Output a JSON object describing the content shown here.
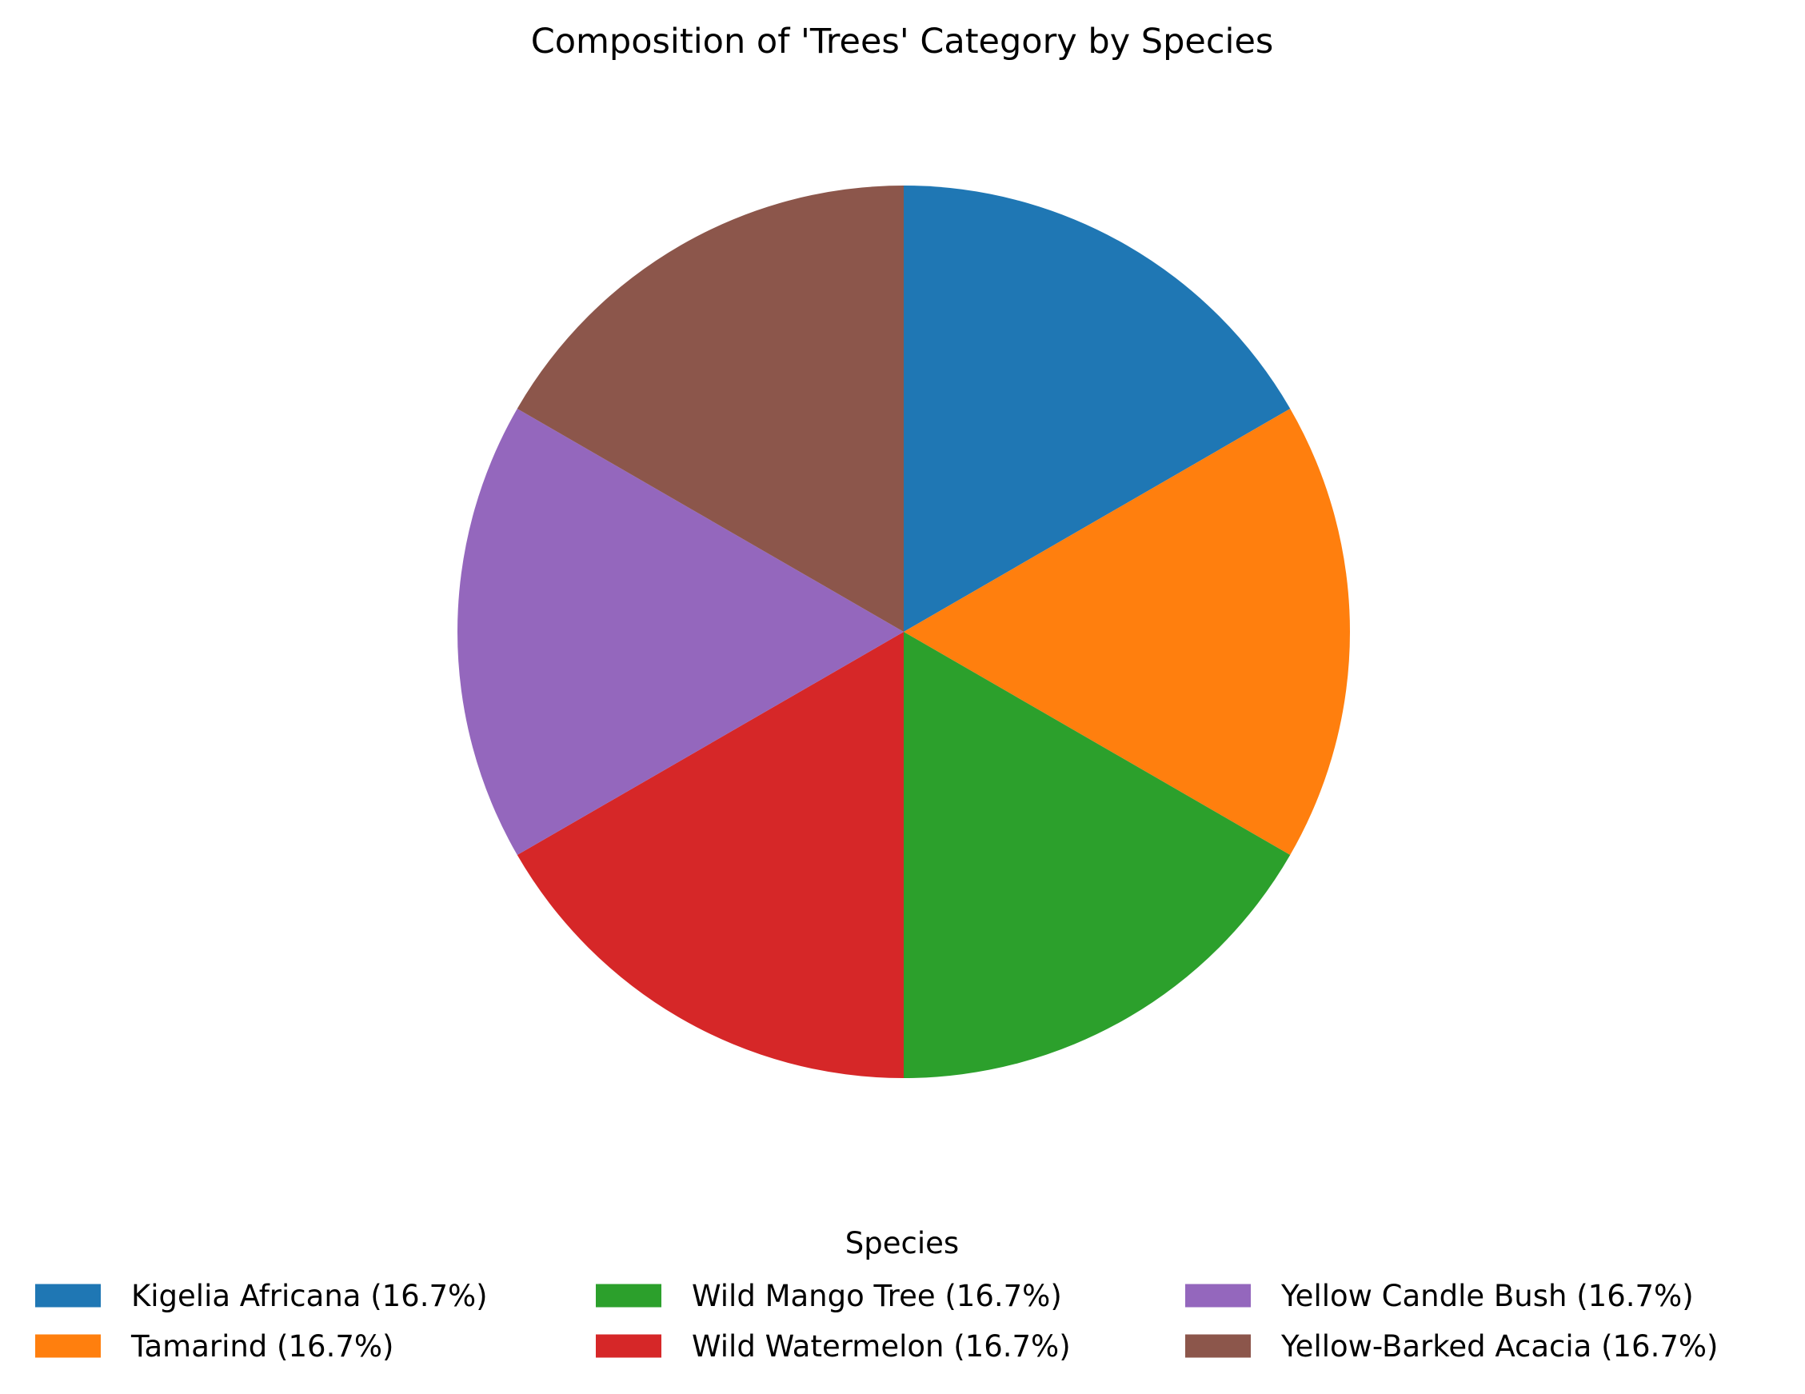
{
  "chart_data": {
    "type": "pie",
    "title": "Composition of 'Trees' Category by Species",
    "legend_title": "Species",
    "legend_placement": "bottom-center",
    "legend_columns": 3,
    "start_angle_deg": 90,
    "direction": "clockwise",
    "slices": [
      {
        "label": "Kigelia Africana",
        "value": 16.7,
        "legend_text": "Kigelia Africana (16.7%)",
        "color": "#1f77b4"
      },
      {
        "label": "Tamarind",
        "value": 16.7,
        "legend_text": "Tamarind (16.7%)",
        "color": "#ff7f0e"
      },
      {
        "label": "Wild Mango Tree",
        "value": 16.7,
        "legend_text": "Wild Mango Tree (16.7%)",
        "color": "#2ca02c"
      },
      {
        "label": "Wild Watermelon",
        "value": 16.7,
        "legend_text": "Wild Watermelon (16.7%)",
        "color": "#d62728"
      },
      {
        "label": "Yellow Candle Bush",
        "value": 16.7,
        "legend_text": "Yellow Candle Bush (16.7%)",
        "color": "#9467bd"
      },
      {
        "label": "Yellow-Barked Acacia",
        "value": 16.7,
        "legend_text": "Yellow-Barked Acacia (16.7%)",
        "color": "#8c564b"
      }
    ]
  }
}
